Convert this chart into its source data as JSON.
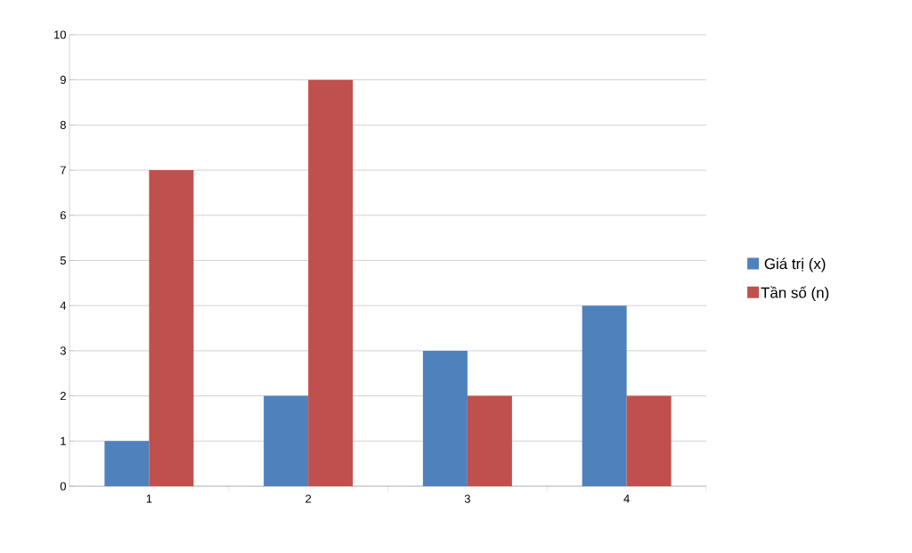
{
  "chart_data": {
    "type": "bar",
    "categories": [
      "1",
      "2",
      "3",
      "4"
    ],
    "series": [
      {
        "name": "Giá trị (x)",
        "color": "#4f81bd",
        "values": [
          1,
          2,
          3,
          4
        ]
      },
      {
        "name": "Tần số (n)",
        "color": "#c0504d",
        "values": [
          7,
          9,
          2,
          2
        ]
      }
    ],
    "ylim": [
      0,
      10
    ],
    "yticks": [
      0,
      1,
      2,
      3,
      4,
      5,
      6,
      7,
      8,
      9,
      10
    ],
    "grid": "y",
    "legend": "right"
  }
}
